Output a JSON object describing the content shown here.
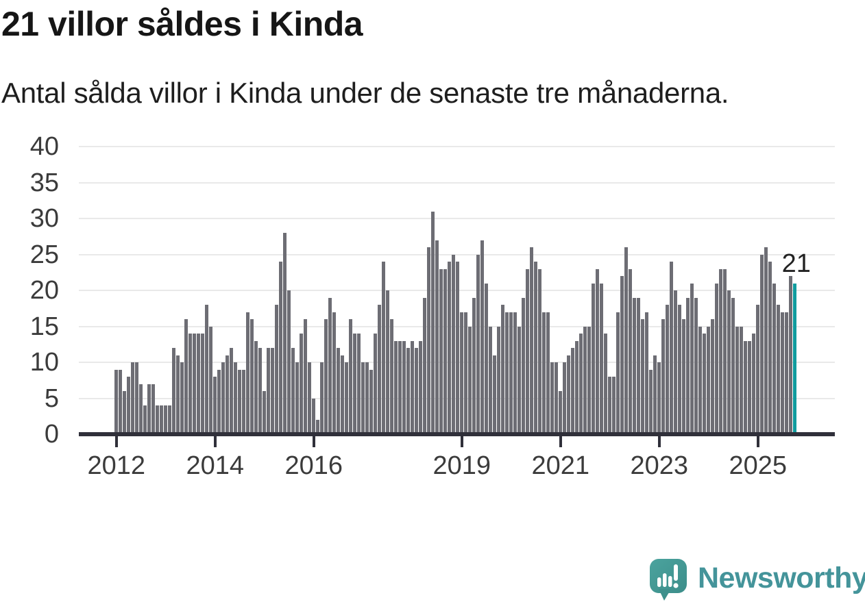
{
  "title": "21 villor såldes i Kinda",
  "subtitle": "Antal sålda villor i Kinda under de senaste tre månaderna.",
  "annotation": {
    "label": "21"
  },
  "logo": {
    "text": "Newsworthy",
    "icon": "newsworthy-speech-bubble-chart-icon"
  },
  "colors": {
    "bar": "#6d6d74",
    "highlight": "#109c9e",
    "axis": "#30303a",
    "grid": "#e9e9e9",
    "title_text": "#161616",
    "tick_label": "#3b3b3b",
    "logo": "#44949a",
    "background": "#ffffff"
  },
  "chart_data": {
    "type": "bar",
    "title": "21 villor såldes i Kinda",
    "subtitle": "Antal sålda villor i Kinda under de senaste tre månaderna.",
    "xlabel": "",
    "ylabel": "",
    "x_unit": "month",
    "x_start": "2012-01",
    "ylim": [
      0,
      40
    ],
    "y_ticks": [
      0,
      5,
      10,
      15,
      20,
      25,
      30,
      35,
      40
    ],
    "grid": true,
    "x_tick_labels": [
      "2012",
      "2014",
      "2016",
      "2019",
      "2021",
      "2023",
      "2025"
    ],
    "x_tick_month_index": [
      0,
      24,
      48,
      84,
      108,
      132,
      156
    ],
    "highlight_last_bar": true,
    "last_bar_label": "21",
    "values": [
      9,
      9,
      6,
      8,
      10,
      10,
      7,
      4,
      7,
      7,
      4,
      4,
      4,
      4,
      12,
      11,
      10,
      16,
      14,
      14,
      14,
      14,
      18,
      15,
      8,
      9,
      10,
      11,
      12,
      10,
      9,
      9,
      17,
      16,
      13,
      12,
      6,
      12,
      12,
      18,
      24,
      28,
      20,
      12,
      10,
      14,
      16,
      10,
      5,
      2,
      10,
      16,
      19,
      17,
      12,
      11,
      10,
      16,
      14,
      14,
      10,
      10,
      9,
      14,
      18,
      24,
      20,
      16,
      13,
      13,
      13,
      12,
      13,
      12,
      13,
      19,
      26,
      31,
      27,
      23,
      23,
      24,
      25,
      24,
      17,
      17,
      15,
      19,
      25,
      27,
      21,
      15,
      11,
      15,
      18,
      17,
      17,
      17,
      15,
      19,
      23,
      26,
      24,
      23,
      17,
      17,
      10,
      10,
      6,
      10,
      11,
      12,
      13,
      14,
      15,
      15,
      21,
      23,
      21,
      14,
      8,
      8,
      17,
      22,
      26,
      23,
      19,
      19,
      16,
      17,
      9,
      11,
      10,
      16,
      18,
      24,
      20,
      18,
      16,
      19,
      21,
      19,
      15,
      14,
      15,
      16,
      21,
      23,
      23,
      20,
      19,
      15,
      15,
      13,
      13,
      14,
      18,
      25,
      26,
      24,
      21,
      18,
      17,
      17,
      22,
      21
    ]
  }
}
